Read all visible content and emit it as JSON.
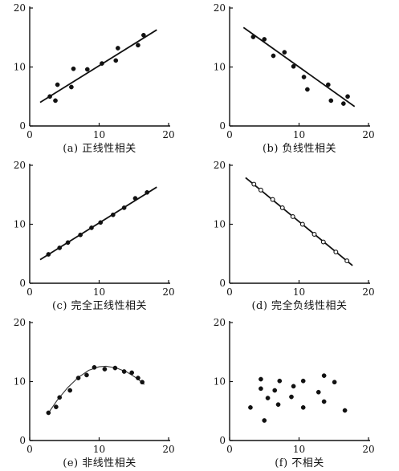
{
  "chart_data": [
    {
      "type": "scatter",
      "title": "(a) 正线性相关",
      "xlim": [
        0,
        20
      ],
      "ylim": [
        0,
        20
      ],
      "xticks": [
        "0",
        "10",
        "20"
      ],
      "yticks": [
        "0",
        "10",
        "20"
      ],
      "grid": false,
      "fit": "line",
      "fit_x": [
        1.5,
        18.3
      ],
      "fit_y": [
        4.0,
        16.3
      ],
      "x": [
        2.9,
        3.7,
        4.0,
        6.0,
        6.3,
        8.3,
        10.4,
        12.4,
        12.7,
        15.6,
        16.4
      ],
      "y": [
        5.0,
        4.3,
        7.0,
        6.6,
        9.7,
        9.6,
        10.6,
        11.1,
        13.2,
        13.7,
        15.4
      ]
    },
    {
      "type": "scatter",
      "title": "(b) 负线性相关",
      "xlim": [
        0,
        20
      ],
      "ylim": [
        0,
        20
      ],
      "xticks": [
        "0",
        "10",
        "20"
      ],
      "yticks": [
        "0",
        "10",
        "20"
      ],
      "grid": false,
      "fit": "line",
      "fit_x": [
        2.0,
        18.0
      ],
      "fit_y": [
        16.7,
        3.3
      ],
      "x": [
        3.4,
        5.0,
        6.3,
        7.9,
        9.2,
        10.7,
        11.2,
        14.2,
        14.6,
        16.4,
        17.0
      ],
      "y": [
        15.1,
        14.7,
        11.9,
        12.5,
        10.1,
        8.3,
        6.2,
        7.0,
        4.3,
        3.8,
        5.0
      ]
    },
    {
      "type": "scatter",
      "title": "(c) 完全正线性相关",
      "xlim": [
        0,
        20
      ],
      "ylim": [
        0,
        20
      ],
      "xticks": [
        "0",
        "10",
        "20"
      ],
      "yticks": [
        "0",
        "10",
        "20"
      ],
      "grid": false,
      "fit": "line",
      "fit_x": [
        1.5,
        18.3
      ],
      "fit_y": [
        4.0,
        16.3
      ],
      "x": [
        2.7,
        4.3,
        5.5,
        7.3,
        8.9,
        10.2,
        12.0,
        13.6,
        15.2,
        16.9
      ],
      "y": [
        4.9,
        6.0,
        6.9,
        8.2,
        9.4,
        10.3,
        11.6,
        12.8,
        14.4,
        15.4
      ]
    },
    {
      "type": "scatter",
      "title": "(d) 完全负线性相关",
      "xlim": [
        0,
        20
      ],
      "ylim": [
        0,
        20
      ],
      "xticks": [
        "0",
        "10",
        "20"
      ],
      "yticks": [
        "0",
        "10",
        "20"
      ],
      "grid": false,
      "fit": "line",
      "fit_x": [
        2.3,
        17.7
      ],
      "fit_y": [
        17.9,
        3.0
      ],
      "x": [
        3.5,
        4.5,
        6.2,
        7.6,
        9.1,
        10.5,
        12.2,
        13.5,
        15.3,
        16.9
      ],
      "y": [
        16.8,
        15.8,
        14.2,
        12.8,
        11.3,
        10.0,
        8.3,
        7.0,
        5.3,
        3.8
      ],
      "point_style": "open"
    },
    {
      "type": "scatter",
      "title": "(e) 非线性相关",
      "xlim": [
        0,
        20
      ],
      "ylim": [
        0,
        20
      ],
      "xticks": [
        "0",
        "10",
        "20"
      ],
      "yticks": [
        "0",
        "10",
        "20"
      ],
      "grid": false,
      "fit": "curve",
      "fit_x": [
        2.6,
        4.0,
        5.5,
        7.0,
        8.5,
        10.0,
        11.0,
        12.5,
        14.0,
        15.5,
        16.5
      ],
      "fit_y": [
        4.5,
        6.9,
        9.0,
        10.7,
        11.9,
        12.5,
        12.6,
        12.3,
        11.6,
        10.5,
        9.5
      ],
      "x": [
        2.7,
        3.8,
        4.3,
        5.8,
        7.0,
        8.2,
        9.3,
        10.8,
        12.3,
        13.6,
        14.7,
        15.6,
        16.2
      ],
      "y": [
        4.7,
        5.7,
        7.3,
        8.5,
        10.6,
        11.1,
        12.4,
        12.1,
        12.3,
        11.7,
        11.5,
        10.6,
        9.9
      ]
    },
    {
      "type": "scatter",
      "title": "(f) 不相关",
      "xlim": [
        0,
        20
      ],
      "ylim": [
        0,
        20
      ],
      "xticks": [
        "0",
        "10",
        "20"
      ],
      "yticks": [
        "0",
        "10",
        "20"
      ],
      "grid": false,
      "fit": "none",
      "x": [
        3.0,
        4.5,
        4.5,
        5.0,
        5.5,
        6.5,
        7.0,
        7.2,
        8.9,
        9.2,
        10.6,
        10.6,
        12.8,
        13.6,
        13.6,
        15.1,
        16.6
      ],
      "y": [
        5.6,
        10.4,
        8.8,
        3.4,
        7.2,
        8.5,
        6.1,
        10.1,
        7.4,
        9.2,
        5.6,
        10.1,
        8.2,
        6.6,
        11.0,
        9.9,
        5.1
      ]
    }
  ]
}
